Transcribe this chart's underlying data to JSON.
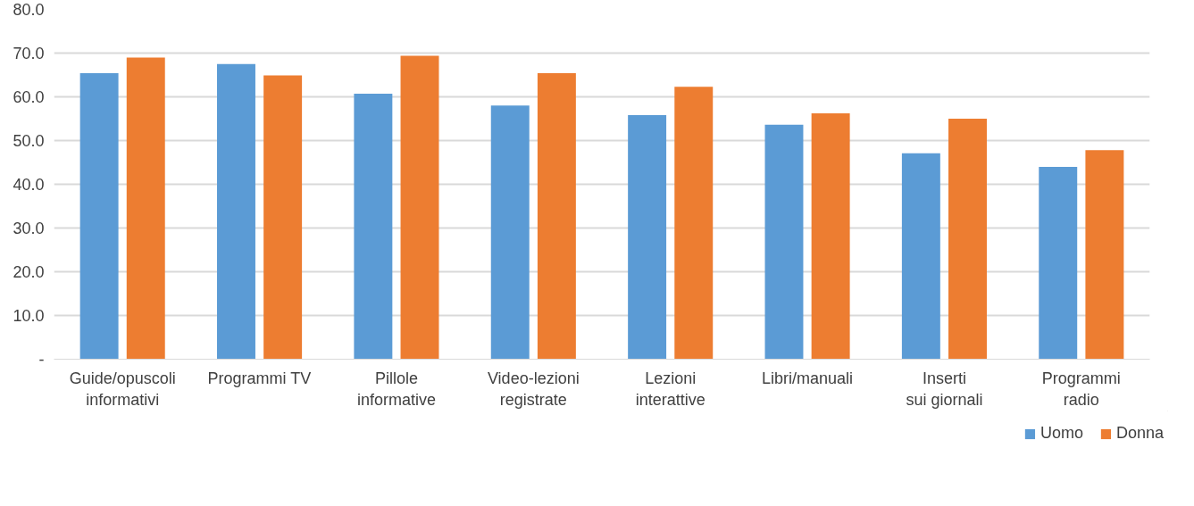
{
  "chart_data": {
    "type": "bar",
    "categories": [
      "Guide/opuscoli informativi",
      "Programmi TV",
      "Pillole informative",
      "Video-lezioni registrate",
      "Lezioni interattive",
      "Libri/manuali",
      "Inserti sui giornali",
      "Programmi radio"
    ],
    "series": [
      {
        "name": "Uomo",
        "color": "#5b9bd5",
        "values": [
          65.4,
          67.5,
          60.7,
          58.0,
          55.8,
          53.6,
          47.1,
          44.0
        ]
      },
      {
        "name": "Donna",
        "color": "#ed7d31",
        "values": [
          69.0,
          64.9,
          69.4,
          65.4,
          62.3,
          56.2,
          55.0,
          47.8
        ]
      }
    ],
    "ylim": [
      0,
      80
    ],
    "yticks": [
      {
        "value": 0,
        "label": "-"
      },
      {
        "value": 10,
        "label": "10.0"
      },
      {
        "value": 20,
        "label": "20.0"
      },
      {
        "value": 30,
        "label": "30.0"
      },
      {
        "value": 40,
        "label": "40.0"
      },
      {
        "value": 50,
        "label": "50.0"
      },
      {
        "value": 60,
        "label": "60.0"
      },
      {
        "value": 70,
        "label": "70.0"
      },
      {
        "value": 80,
        "label": "80.0"
      }
    ],
    "grid": "y",
    "legend": "bottom right"
  }
}
